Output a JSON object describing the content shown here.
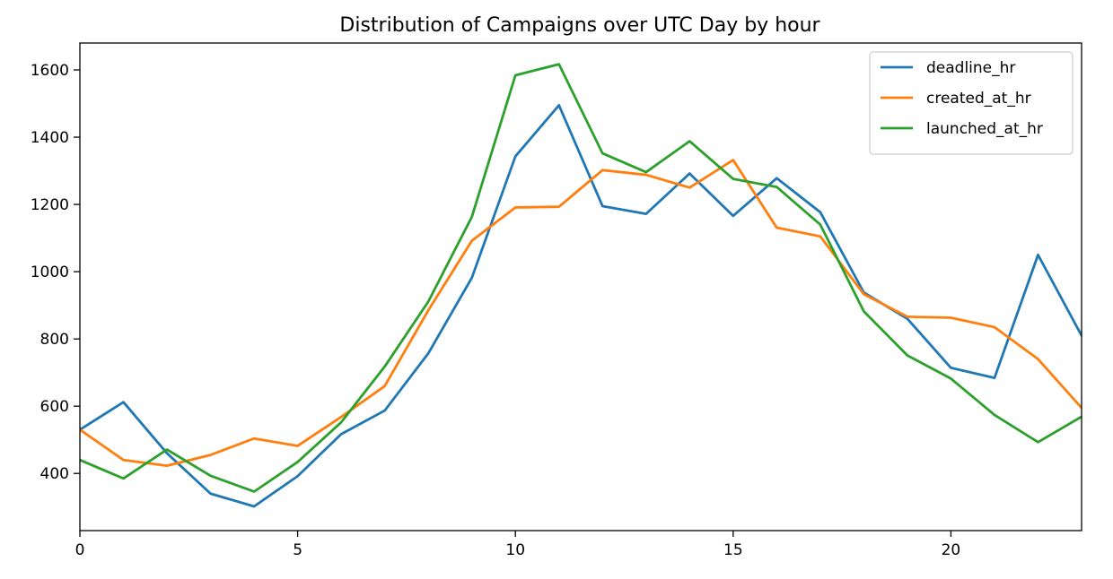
{
  "chart_data": {
    "type": "line",
    "title": "Distribution of Campaigns over UTC Day by hour",
    "xlabel": "",
    "ylabel": "",
    "x": [
      0,
      1,
      2,
      3,
      4,
      5,
      6,
      7,
      8,
      9,
      10,
      11,
      12,
      13,
      14,
      15,
      16,
      17,
      18,
      19,
      20,
      21,
      22,
      23
    ],
    "xlim": [
      0,
      23
    ],
    "ylim": [
      230,
      1680
    ],
    "x_ticks": [
      0,
      5,
      10,
      15,
      20
    ],
    "y_ticks": [
      400,
      600,
      800,
      1000,
      1200,
      1400,
      1600
    ],
    "grid": false,
    "legend_position": "top-right",
    "series": [
      {
        "name": "deadline_hr",
        "color": "#1f77b4",
        "values": [
          530,
          612,
          460,
          340,
          302,
          392,
          517,
          587,
          757,
          982,
          1343,
          1495,
          1195,
          1172,
          1292,
          1166,
          1278,
          1177,
          938,
          860,
          714,
          684,
          1050,
          810
        ]
      },
      {
        "name": "created_at_hr",
        "color": "#ff7f0e",
        "values": [
          530,
          440,
          423,
          455,
          504,
          482,
          568,
          660,
          885,
          1092,
          1191,
          1193,
          1302,
          1288,
          1250,
          1332,
          1131,
          1105,
          933,
          866,
          863,
          835,
          740,
          595
        ]
      },
      {
        "name": "launched_at_hr",
        "color": "#2ca02c",
        "values": [
          440,
          385,
          471,
          393,
          346,
          434,
          552,
          718,
          911,
          1163,
          1584,
          1617,
          1352,
          1296,
          1388,
          1276,
          1252,
          1140,
          882,
          751,
          682,
          574,
          493,
          569
        ]
      }
    ]
  }
}
